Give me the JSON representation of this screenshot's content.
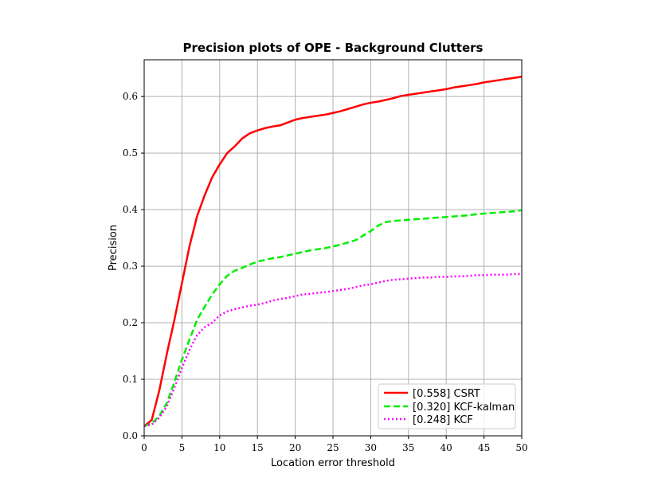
{
  "chart_data": {
    "type": "line",
    "title": "Precision plots of OPE - Background Clutters",
    "xlabel": "Location error threshold",
    "ylabel": "Precision",
    "xlim": [
      0,
      50
    ],
    "ylim": [
      0,
      0.665
    ],
    "xticks": [
      0,
      5,
      10,
      15,
      20,
      25,
      30,
      35,
      40,
      45,
      50
    ],
    "yticks": [
      0.0,
      0.1,
      0.2,
      0.3,
      0.4,
      0.5,
      0.6
    ],
    "xtick_labels": [
      "0",
      "5",
      "10",
      "15",
      "20",
      "25",
      "30",
      "35",
      "40",
      "45",
      "50"
    ],
    "ytick_labels": [
      "0.0",
      "0.1",
      "0.2",
      "0.3",
      "0.4",
      "0.5",
      "0.6"
    ],
    "grid": true,
    "legend_position": "bottom-right",
    "x": [
      0,
      1,
      2,
      3,
      4,
      5,
      6,
      7,
      8,
      9,
      10,
      11,
      12,
      13,
      14,
      15,
      16,
      17,
      18,
      19,
      20,
      21,
      22,
      23,
      24,
      25,
      26,
      27,
      28,
      29,
      30,
      31,
      32,
      33,
      34,
      35,
      36,
      37,
      38,
      39,
      40,
      41,
      42,
      43,
      44,
      45,
      46,
      47,
      48,
      49,
      50
    ],
    "series": [
      {
        "name": "[0.558] CSRT",
        "color": "#ff0000",
        "dash": "solid",
        "values": [
          0.017,
          0.028,
          0.08,
          0.145,
          0.205,
          0.27,
          0.335,
          0.388,
          0.425,
          0.457,
          0.48,
          0.5,
          0.512,
          0.526,
          0.535,
          0.54,
          0.544,
          0.547,
          0.549,
          0.554,
          0.559,
          0.562,
          0.564,
          0.566,
          0.568,
          0.571,
          0.574,
          0.578,
          0.582,
          0.586,
          0.589,
          0.591,
          0.594,
          0.597,
          0.601,
          0.603,
          0.605,
          0.607,
          0.609,
          0.611,
          0.613,
          0.616,
          0.618,
          0.62,
          0.622,
          0.625,
          0.627,
          0.629,
          0.631,
          0.633,
          0.635
        ]
      },
      {
        "name": "[0.320] KCF-kalman",
        "color": "#00ee00",
        "dash": "dashed",
        "values": [
          0.017,
          0.022,
          0.035,
          0.058,
          0.095,
          0.135,
          0.17,
          0.205,
          0.228,
          0.25,
          0.268,
          0.283,
          0.292,
          0.297,
          0.303,
          0.308,
          0.311,
          0.314,
          0.316,
          0.319,
          0.322,
          0.325,
          0.328,
          0.33,
          0.332,
          0.335,
          0.338,
          0.342,
          0.346,
          0.354,
          0.362,
          0.372,
          0.378,
          0.38,
          0.381,
          0.382,
          0.383,
          0.384,
          0.385,
          0.386,
          0.387,
          0.388,
          0.389,
          0.39,
          0.392,
          0.393,
          0.394,
          0.395,
          0.396,
          0.397,
          0.399
        ]
      },
      {
        "name": "[0.248] KCF",
        "color": "#ff00ff",
        "dash": "dotted",
        "values": [
          0.017,
          0.02,
          0.032,
          0.052,
          0.085,
          0.12,
          0.152,
          0.178,
          0.192,
          0.2,
          0.213,
          0.22,
          0.224,
          0.227,
          0.23,
          0.232,
          0.235,
          0.239,
          0.242,
          0.244,
          0.247,
          0.25,
          0.251,
          0.253,
          0.254,
          0.256,
          0.258,
          0.26,
          0.263,
          0.266,
          0.268,
          0.271,
          0.274,
          0.276,
          0.277,
          0.278,
          0.279,
          0.28,
          0.28,
          0.281,
          0.281,
          0.282,
          0.282,
          0.283,
          0.284,
          0.284,
          0.285,
          0.285,
          0.285,
          0.286,
          0.286
        ]
      }
    ]
  }
}
